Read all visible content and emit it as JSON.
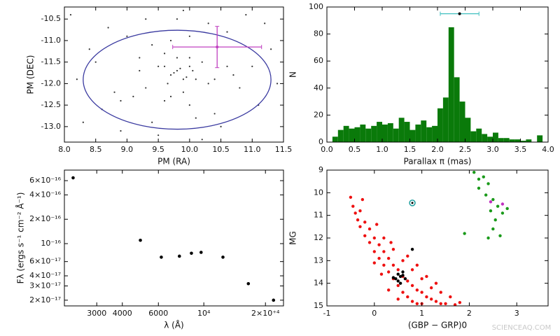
{
  "chart_data": [
    {
      "type": "scatter",
      "xlabel": "PM (RA)",
      "ylabel": "PM (DEC)",
      "xlim": [
        8.0,
        11.5
      ],
      "ylim": [
        -13.36,
        -10.22
      ],
      "xticks": [
        {
          "value": 8.0,
          "label": "8.0"
        },
        8.5,
        {
          "value": 9.0,
          "label": "9.0"
        },
        9.5,
        {
          "value": 10.0,
          "label": "10.0"
        },
        10.5,
        {
          "value": 11.0,
          "label": "11.0"
        },
        11.5
      ],
      "yticks": [
        -10.5,
        {
          "value": -11.0,
          "label": "-11.0"
        },
        -11.5,
        {
          "value": -12.0,
          "label": "-12.0"
        },
        -12.5,
        {
          "value": -13.0,
          "label": "-13.0"
        }
      ],
      "series": [
        {
          "color": "#333333",
          "x": [
            8.1,
            8.3,
            8.5,
            8.7,
            8.9,
            9.1,
            9.3,
            9.5,
            9.7,
            9.9,
            10.1,
            10.3,
            10.5,
            10.7,
            10.9,
            11.1,
            11.3,
            8.2,
            8.6,
            9.0,
            9.4,
            9.8,
            10.2,
            10.6,
            11.0,
            11.4,
            8.4,
            8.8,
            9.2,
            9.6,
            10.0,
            10.4,
            10.8,
            11.2,
            9.6,
            9.7,
            9.8,
            9.9,
            10.0,
            9.75,
            9.85,
            9.95,
            9.65,
            10.05,
            9.9,
            9.8,
            10.1,
            9.7,
            9.5,
            10.2,
            9.3,
            10.4,
            9.6,
            10.0,
            9.2,
            10.3,
            8.9,
            10.6,
            9.4,
            10.0
          ],
          "values": [
            -10.4,
            -12.9,
            -11.5,
            -10.7,
            -13.1,
            -12.3,
            -10.5,
            -13.2,
            -11.0,
            -10.3,
            -12.8,
            -10.6,
            -13.0,
            -11.8,
            -10.4,
            -12.5,
            -11.2,
            -11.9,
            -12.6,
            -10.9,
            -12.9,
            -10.5,
            -13.3,
            -10.8,
            -11.6,
            -12.0,
            -11.2,
            -12.2,
            -11.4,
            -12.4,
            -10.9,
            -12.7,
            -12.1,
            -10.6,
            -11.6,
            -11.8,
            -11.7,
            -11.9,
            -11.6,
            -11.75,
            -11.65,
            -11.85,
            -12.0,
            -11.7,
            -12.2,
            -11.4,
            -11.9,
            -12.3,
            -11.6,
            -11.5,
            -12.1,
            -11.9,
            -11.3,
            -12.5,
            -11.7,
            -12.0,
            -12.4,
            -11.6,
            -11.1,
            -11.4
          ]
        }
      ],
      "ellipse": {
        "cx": 9.8,
        "cy": -11.91,
        "rx": 1.5,
        "ry": 1.15,
        "color": "#3a3aa0"
      },
      "errorbar": {
        "x": 10.44,
        "y": -11.15,
        "xerr": 0.71,
        "yerr": 0.48,
        "color": "#c040c0"
      }
    },
    {
      "type": "histogram",
      "xlabel": "Parallax π (mas)",
      "ylabel": "N",
      "color": "#0a7a0a",
      "xlim": [
        0,
        4
      ],
      "ylim": [
        0,
        100
      ],
      "xticks": [
        {
          "value": 0,
          "label": "0.0"
        },
        0.5,
        {
          "value": 1,
          "label": "1.0"
        },
        1.5,
        {
          "value": 2,
          "label": "2.0"
        },
        2.5,
        {
          "value": 3,
          "label": "3.0"
        },
        3.5,
        {
          "value": 4,
          "label": "4.0"
        }
      ],
      "yticks": [
        0,
        20,
        40,
        60,
        80,
        100
      ],
      "bins": [
        0,
        0.1,
        0.2,
        0.3,
        0.4,
        0.5,
        0.6,
        0.7,
        0.8,
        0.9,
        1.0,
        1.1,
        1.2,
        1.3,
        1.4,
        1.5,
        1.6,
        1.7,
        1.8,
        1.9,
        2.0,
        2.1,
        2.2,
        2.3,
        2.4,
        2.5,
        2.6,
        2.7,
        2.8,
        2.9,
        3.0,
        3.1,
        3.2,
        3.3,
        3.4,
        3.5,
        3.6,
        3.7,
        3.8,
        3.9,
        4.0
      ],
      "values": [
        0,
        4,
        9,
        12,
        10,
        11,
        13,
        10,
        12,
        15,
        13,
        14,
        10,
        18,
        15,
        9,
        13,
        16,
        11,
        12,
        25,
        33,
        85,
        48,
        30,
        18,
        8,
        10,
        6,
        4,
        7,
        3,
        3,
        2,
        2,
        1,
        2,
        0,
        5,
        0
      ],
      "errorbar": {
        "x": 2.4,
        "y": 95,
        "xerr": 0.35,
        "color": "#40c0c0"
      }
    },
    {
      "type": "scatter",
      "xlabel": "λ (Å)",
      "ylabel": "Fλ (ergs s⁻¹ cm⁻² Å⁻¹)",
      "xscale": "log",
      "yscale": "log",
      "xlim": [
        2085,
        24500
      ],
      "ylim": [
        1.7e-17,
        8.1e-16
      ],
      "xticks": [
        3000,
        4000,
        6000,
        {
          "value": 10000,
          "label": "10⁴"
        },
        {
          "value": 20000,
          "label": "2×10⁺⁴"
        }
      ],
      "yticks": [
        {
          "value": 2e-17,
          "label": "2×10⁻¹⁷"
        },
        {
          "value": 3e-17,
          "label": "3×10⁻¹⁷"
        },
        {
          "value": 4e-17,
          "label": "4×10⁻¹⁷"
        },
        {
          "value": 6e-17,
          "label": "6×10⁻¹⁷"
        },
        {
          "value": 1e-16,
          "label": "10⁻¹⁶"
        },
        {
          "value": 2e-16,
          "label": "2×10⁻¹⁶"
        },
        {
          "value": 4e-16,
          "label": "4×10⁻¹⁶"
        },
        {
          "value": 6e-16,
          "label": "6×10⁻¹⁶"
        }
      ],
      "series": [
        {
          "color": "#000000",
          "x": [
            2300,
            4900,
            6200,
            7600,
            8700,
            9700,
            12400,
            16500,
            21900
          ],
          "values": [
            6.5e-16,
            1.1e-16,
            6.8e-17,
            7e-17,
            7.6e-17,
            7.8e-17,
            6.8e-17,
            3.2e-17,
            2e-17
          ]
        }
      ]
    },
    {
      "type": "scatter",
      "xlabel": "(GBP − GRP)0",
      "ylabel": "MG",
      "y_inverted": true,
      "xlim": [
        -1,
        3.66
      ],
      "ylim": [
        9,
        15
      ],
      "xticks": [
        -1,
        0,
        1,
        2,
        3
      ],
      "yticks": [
        9,
        10,
        11,
        12,
        13,
        14,
        15
      ],
      "series": [
        {
          "color": "#ee1111",
          "x": [
            -0.5,
            -0.45,
            -0.4,
            -0.35,
            -0.3,
            -0.3,
            -0.2,
            -0.2,
            -0.1,
            -0.1,
            0,
            0,
            0.1,
            0.1,
            0.2,
            0.2,
            0.3,
            0.3,
            0.4,
            0.4,
            0.5,
            0.5,
            0.6,
            0.6,
            0.7,
            0.7,
            0.8,
            0.8,
            0.9,
            0.9,
            1.0,
            1.0,
            1.1,
            1.2,
            1.3,
            1.4,
            1.5,
            1.7,
            0.6,
            0.8,
            1.0,
            1.2,
            0.9,
            1.1,
            0.4,
            0.2,
            1.4,
            1.6,
            -0.25,
            0.05,
            0.35,
            0.7,
            1.3,
            1.8,
            0.15,
            0.3,
            0.5,
            0.0
          ],
          "values": [
            10.2,
            10.6,
            10.9,
            11.2,
            10.8,
            11.5,
            11.3,
            11.9,
            11.6,
            12.2,
            12.0,
            12.6,
            12.3,
            12.9,
            12.6,
            13.2,
            12.9,
            13.5,
            13.2,
            13.8,
            13.4,
            14.1,
            13.7,
            14.4,
            13.9,
            14.6,
            14.1,
            14.8,
            14.3,
            14.9,
            14.4,
            14.9,
            14.6,
            14.7,
            14.8,
            14.9,
            14.9,
            14.95,
            13.0,
            13.4,
            13.8,
            14.2,
            13.2,
            13.7,
            12.5,
            12.0,
            14.4,
            14.6,
            10.3,
            11.4,
            12.2,
            12.8,
            14.0,
            14.85,
            13.6,
            14.3,
            14.7,
            13.1
          ]
        },
        {
          "color": "#1a9a1a",
          "x": [
            2.1,
            2.2,
            2.3,
            2.2,
            2.35,
            2.4,
            2.5,
            2.45,
            2.6,
            2.55,
            2.7,
            2.5,
            2.65,
            2.8,
            2.4,
            1.9
          ],
          "values": [
            9.1,
            9.4,
            9.3,
            9.8,
            10.1,
            9.6,
            10.3,
            10.8,
            10.6,
            11.2,
            10.9,
            11.6,
            11.9,
            10.7,
            12.0,
            11.8
          ]
        },
        {
          "color": "#000000",
          "x": [
            0.45,
            0.5,
            0.55,
            0.6,
            0.5,
            0.65,
            0.55,
            0.6,
            0.4,
            0.8
          ],
          "values": [
            13.8,
            13.6,
            13.7,
            13.5,
            13.9,
            13.8,
            14.0,
            13.65,
            13.75,
            12.5
          ]
        },
        {
          "color": "#c030c0",
          "x": [
            2.45,
            2.7
          ],
          "values": [
            10.4,
            10.5
          ]
        },
        {
          "color": "#20a0a0",
          "marker": "ring",
          "x": [
            0.8
          ],
          "values": [
            10.45
          ]
        }
      ]
    }
  ],
  "watermark": "SCIENCEAQ.COM"
}
